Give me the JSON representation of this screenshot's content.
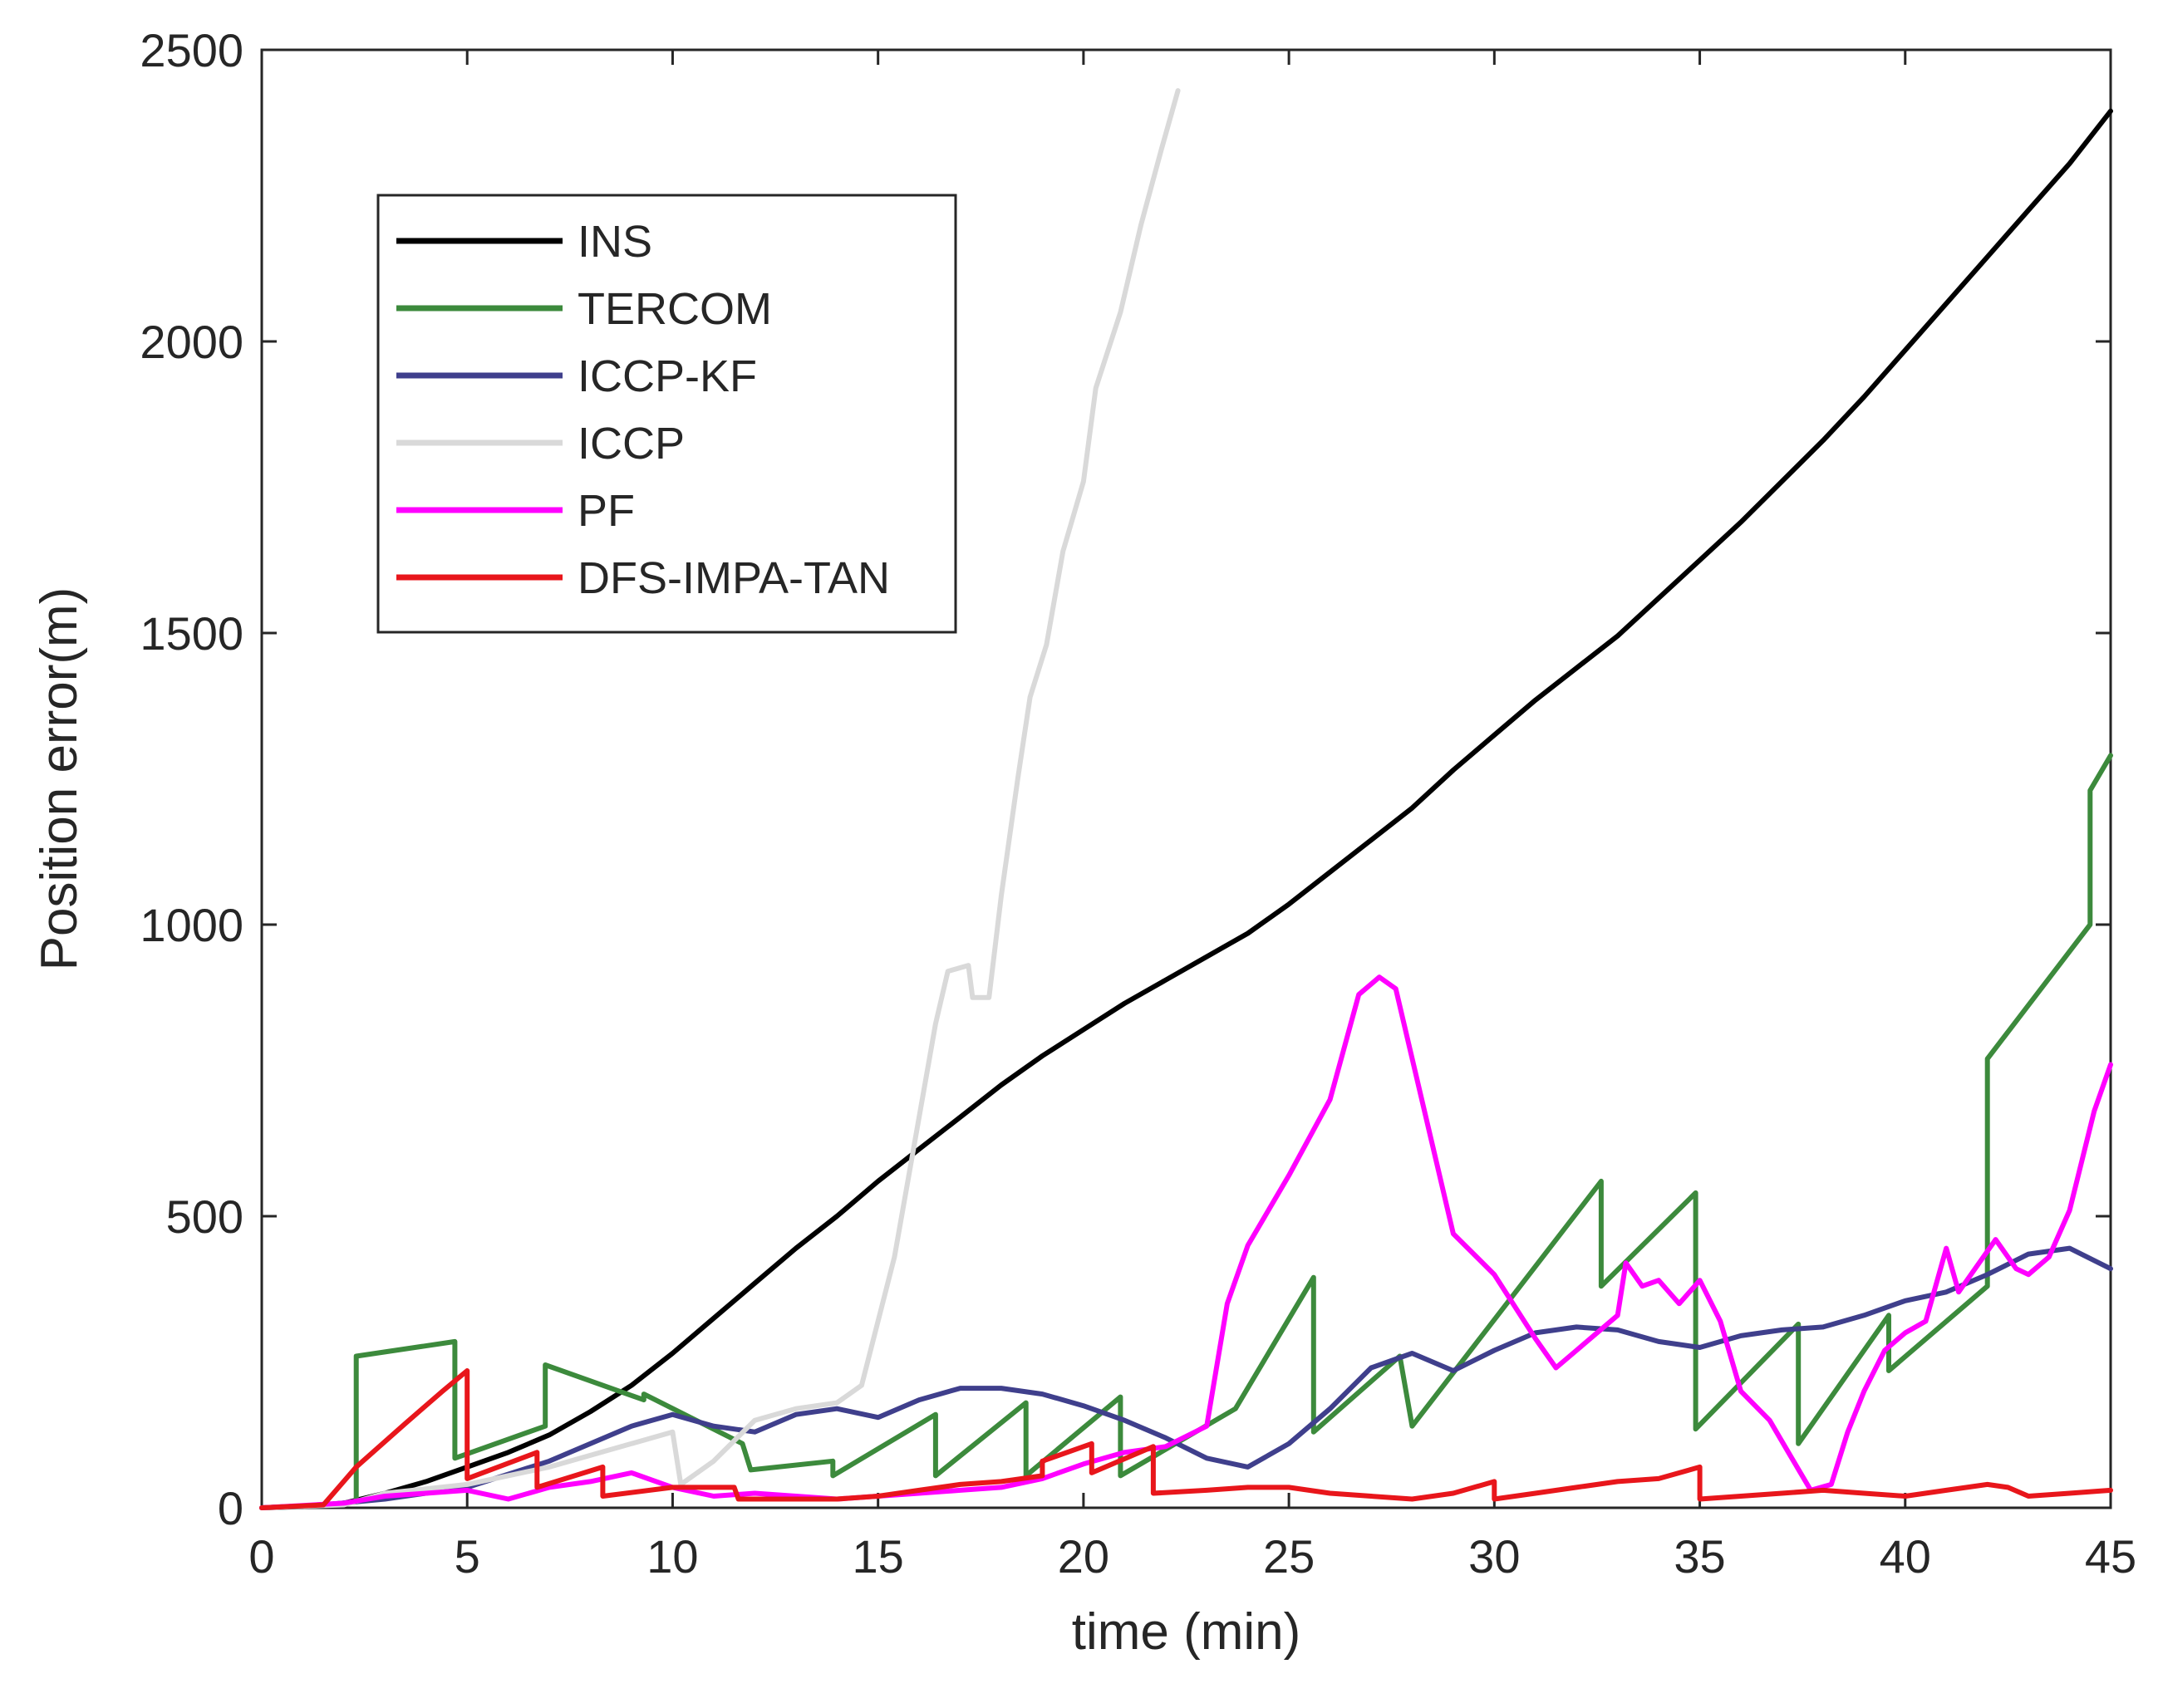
{
  "chart_data": {
    "type": "line",
    "title": "",
    "xlabel": "time (min)",
    "ylabel": "Position error(m)",
    "xlim": [
      0,
      45
    ],
    "ylim": [
      0,
      2500
    ],
    "xticks": [
      0,
      5,
      10,
      15,
      20,
      25,
      30,
      35,
      40,
      45
    ],
    "yticks": [
      0,
      500,
      1000,
      1500,
      2000,
      2500
    ],
    "xtick_labels": [
      "0",
      "5",
      "10",
      "15",
      "20",
      "25",
      "30",
      "35",
      "40",
      "45"
    ],
    "ytick_labels": [
      "0",
      "500",
      "1000",
      "1500",
      "2000",
      "2500"
    ],
    "grid": false,
    "legend_position": "upper-left",
    "series": [
      {
        "name": "INS",
        "color": "#000000",
        "points": [
          [
            0,
            0
          ],
          [
            1,
            2
          ],
          [
            2,
            8
          ],
          [
            3,
            25
          ],
          [
            4,
            45
          ],
          [
            5,
            70
          ],
          [
            6,
            95
          ],
          [
            7,
            125
          ],
          [
            8,
            165
          ],
          [
            9,
            210
          ],
          [
            10,
            265
          ],
          [
            11,
            325
          ],
          [
            12,
            385
          ],
          [
            13,
            445
          ],
          [
            14,
            500
          ],
          [
            15,
            560
          ],
          [
            16,
            615
          ],
          [
            17,
            670
          ],
          [
            18,
            725
          ],
          [
            19,
            775
          ],
          [
            20,
            820
          ],
          [
            21,
            865
          ],
          [
            22,
            905
          ],
          [
            23,
            945
          ],
          [
            24,
            985
          ],
          [
            25,
            1035
          ],
          [
            26,
            1090
          ],
          [
            27,
            1145
          ],
          [
            28,
            1200
          ],
          [
            29,
            1265
          ],
          [
            30,
            1325
          ],
          [
            31,
            1385
          ],
          [
            32,
            1440
          ],
          [
            33,
            1495
          ],
          [
            34,
            1560
          ],
          [
            35,
            1625
          ],
          [
            36,
            1690
          ],
          [
            37,
            1760
          ],
          [
            38,
            1830
          ],
          [
            39,
            1905
          ],
          [
            40,
            1985
          ],
          [
            41,
            2065
          ],
          [
            42,
            2145
          ],
          [
            43,
            2225
          ],
          [
            44,
            2305
          ],
          [
            45,
            2395
          ]
        ]
      },
      {
        "name": "TERCOM",
        "color": "#3c8a3c",
        "points": [
          [
            0,
            0
          ],
          [
            1.5,
            5
          ],
          [
            2.3,
            10
          ],
          [
            2.3,
            260
          ],
          [
            4.7,
            285
          ],
          [
            4.7,
            85
          ],
          [
            6.9,
            140
          ],
          [
            6.9,
            245
          ],
          [
            9.3,
            185
          ],
          [
            9.3,
            195
          ],
          [
            11.7,
            110
          ],
          [
            11.9,
            65
          ],
          [
            13.9,
            80
          ],
          [
            13.9,
            55
          ],
          [
            16.4,
            160
          ],
          [
            16.4,
            55
          ],
          [
            18.6,
            180
          ],
          [
            18.6,
            55
          ],
          [
            20.9,
            190
          ],
          [
            20.9,
            55
          ],
          [
            23.7,
            170
          ],
          [
            23.7,
            170
          ],
          [
            25.6,
            395
          ],
          [
            25.6,
            130
          ],
          [
            27.7,
            260
          ],
          [
            27.7,
            260
          ],
          [
            28,
            140
          ],
          [
            32.6,
            560
          ],
          [
            32.6,
            380
          ],
          [
            34.9,
            540
          ],
          [
            34.9,
            135
          ],
          [
            37.4,
            315
          ],
          [
            37.4,
            110
          ],
          [
            39.6,
            330
          ],
          [
            39.6,
            235
          ],
          [
            42,
            380
          ],
          [
            42,
            770
          ],
          [
            44.5,
            1000
          ],
          [
            44.5,
            1230
          ],
          [
            45,
            1290
          ]
        ]
      },
      {
        "name": "ICCP-KF",
        "color": "#3f3f8c",
        "points": [
          [
            0,
            0
          ],
          [
            1.5,
            5
          ],
          [
            3,
            15
          ],
          [
            5,
            35
          ],
          [
            7,
            80
          ],
          [
            9,
            140
          ],
          [
            10,
            160
          ],
          [
            11,
            140
          ],
          [
            12,
            130
          ],
          [
            13,
            160
          ],
          [
            14,
            170
          ],
          [
            15,
            155
          ],
          [
            16,
            185
          ],
          [
            17,
            205
          ],
          [
            18,
            205
          ],
          [
            19,
            195
          ],
          [
            20,
            175
          ],
          [
            21,
            150
          ],
          [
            22,
            120
          ],
          [
            23,
            85
          ],
          [
            24,
            70
          ],
          [
            25,
            110
          ],
          [
            26,
            170
          ],
          [
            27,
            240
          ],
          [
            28,
            265
          ],
          [
            29,
            235
          ],
          [
            30,
            270
          ],
          [
            31,
            300
          ],
          [
            32,
            310
          ],
          [
            33,
            305
          ],
          [
            34,
            285
          ],
          [
            35,
            275
          ],
          [
            36,
            295
          ],
          [
            37,
            305
          ],
          [
            38,
            310
          ],
          [
            39,
            330
          ],
          [
            40,
            355
          ],
          [
            41,
            370
          ],
          [
            42,
            400
          ],
          [
            43,
            435
          ],
          [
            44,
            445
          ],
          [
            45,
            410
          ]
        ]
      },
      {
        "name": "ICCP",
        "color": "#d9d9d9",
        "points": [
          [
            0,
            0
          ],
          [
            2,
            5
          ],
          [
            3,
            25
          ],
          [
            5,
            40
          ],
          [
            7,
            70
          ],
          [
            9,
            110
          ],
          [
            10,
            130
          ],
          [
            10.2,
            40
          ],
          [
            11,
            80
          ],
          [
            12,
            150
          ],
          [
            13,
            170
          ],
          [
            14,
            180
          ],
          [
            14.6,
            210
          ],
          [
            15.4,
            430
          ],
          [
            16,
            670
          ],
          [
            16.4,
            830
          ],
          [
            16.7,
            920
          ],
          [
            17.2,
            930
          ],
          [
            17.3,
            875
          ],
          [
            17.7,
            875
          ],
          [
            18,
            1050
          ],
          [
            18.4,
            1250
          ],
          [
            18.7,
            1390
          ],
          [
            19.1,
            1480
          ],
          [
            19.5,
            1640
          ],
          [
            20,
            1760
          ],
          [
            20.3,
            1920
          ],
          [
            20.9,
            2050
          ],
          [
            21.4,
            2200
          ],
          [
            21.9,
            2330
          ],
          [
            22.3,
            2430
          ]
        ]
      },
      {
        "name": "PF",
        "color": "#ff00ff",
        "points": [
          [
            0,
            0
          ],
          [
            2,
            8
          ],
          [
            3,
            20
          ],
          [
            4,
            25
          ],
          [
            5,
            30
          ],
          [
            6,
            15
          ],
          [
            7,
            35
          ],
          [
            8,
            45
          ],
          [
            9,
            60
          ],
          [
            10,
            35
          ],
          [
            11,
            20
          ],
          [
            12,
            25
          ],
          [
            13,
            20
          ],
          [
            14,
            15
          ],
          [
            15,
            20
          ],
          [
            16,
            25
          ],
          [
            17,
            30
          ],
          [
            18,
            35
          ],
          [
            19,
            50
          ],
          [
            20,
            75
          ],
          [
            21,
            95
          ],
          [
            22,
            105
          ],
          [
            23,
            140
          ],
          [
            23.5,
            350
          ],
          [
            24,
            450
          ],
          [
            25,
            570
          ],
          [
            26,
            700
          ],
          [
            26.7,
            880
          ],
          [
            27.2,
            910
          ],
          [
            27.6,
            890
          ],
          [
            28.5,
            620
          ],
          [
            29,
            470
          ],
          [
            30,
            400
          ],
          [
            31,
            290
          ],
          [
            31.5,
            240
          ],
          [
            32,
            270
          ],
          [
            33,
            330
          ],
          [
            33.2,
            420
          ],
          [
            33.6,
            380
          ],
          [
            34,
            390
          ],
          [
            34.5,
            350
          ],
          [
            35,
            390
          ],
          [
            35.5,
            320
          ],
          [
            36,
            200
          ],
          [
            36.7,
            150
          ],
          [
            37.2,
            90
          ],
          [
            37.7,
            30
          ],
          [
            38.2,
            40
          ],
          [
            38.6,
            130
          ],
          [
            39,
            200
          ],
          [
            39.5,
            270
          ],
          [
            40,
            300
          ],
          [
            40.5,
            320
          ],
          [
            41,
            445
          ],
          [
            41.3,
            370
          ],
          [
            41.8,
            420
          ],
          [
            42.2,
            460
          ],
          [
            42.7,
            410
          ],
          [
            43,
            400
          ],
          [
            43.5,
            430
          ],
          [
            44,
            510
          ],
          [
            44.6,
            680
          ],
          [
            45,
            760
          ]
        ]
      },
      {
        "name": "DFS-IMPA-TAN",
        "color": "#e8161b",
        "points": [
          [
            0,
            0
          ],
          [
            1.5,
            5
          ],
          [
            2.3,
            70
          ],
          [
            3.5,
            145
          ],
          [
            4.4,
            200
          ],
          [
            5,
            235
          ],
          [
            5,
            50
          ],
          [
            6.7,
            95
          ],
          [
            6.7,
            35
          ],
          [
            8.3,
            70
          ],
          [
            8.3,
            20
          ],
          [
            10,
            35
          ],
          [
            11.5,
            35
          ],
          [
            11.6,
            15
          ],
          [
            13,
            15
          ],
          [
            14,
            15
          ],
          [
            15,
            20
          ],
          [
            16,
            30
          ],
          [
            17,
            40
          ],
          [
            18,
            45
          ],
          [
            19,
            55
          ],
          [
            19,
            80
          ],
          [
            20.2,
            110
          ],
          [
            20.2,
            60
          ],
          [
            21.7,
            105
          ],
          [
            21.7,
            25
          ],
          [
            23,
            30
          ],
          [
            24,
            35
          ],
          [
            25,
            35
          ],
          [
            26,
            25
          ],
          [
            27,
            20
          ],
          [
            28,
            15
          ],
          [
            29,
            25
          ],
          [
            30,
            45
          ],
          [
            30,
            15
          ],
          [
            31,
            25
          ],
          [
            32,
            35
          ],
          [
            33,
            45
          ],
          [
            34,
            50
          ],
          [
            35,
            70
          ],
          [
            35,
            15
          ],
          [
            36,
            20
          ],
          [
            37,
            25
          ],
          [
            38,
            30
          ],
          [
            39,
            25
          ],
          [
            40,
            20
          ],
          [
            41,
            30
          ],
          [
            42,
            40
          ],
          [
            42.5,
            35
          ],
          [
            43,
            20
          ],
          [
            44,
            25
          ],
          [
            45,
            30
          ]
        ]
      }
    ]
  }
}
